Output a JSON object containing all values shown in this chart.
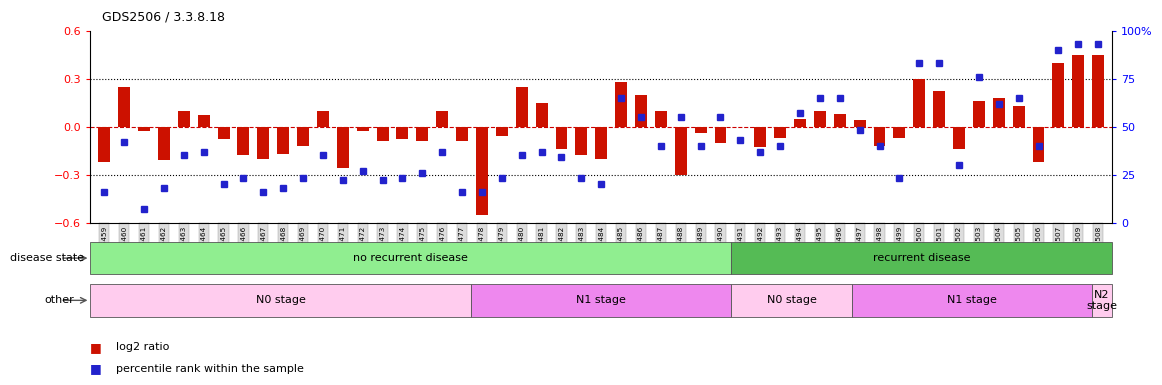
{
  "title": "GDS2506 / 3.3.8.18",
  "samples": [
    "GSM115459",
    "GSM115460",
    "GSM115461",
    "GSM115462",
    "GSM115463",
    "GSM115464",
    "GSM115465",
    "GSM115466",
    "GSM115467",
    "GSM115468",
    "GSM115469",
    "GSM115470",
    "GSM115471",
    "GSM115472",
    "GSM115473",
    "GSM115474",
    "GSM115475",
    "GSM115476",
    "GSM115477",
    "GSM115478",
    "GSM115479",
    "GSM115480",
    "GSM115481",
    "GSM115482",
    "GSM115483",
    "GSM115484",
    "GSM115485",
    "GSM115486",
    "GSM115487",
    "GSM115488",
    "GSM115489",
    "GSM115490",
    "GSM115491",
    "GSM115492",
    "GSM115493",
    "GSM115494",
    "GSM115495",
    "GSM115496",
    "GSM115497",
    "GSM115498",
    "GSM115499",
    "GSM115500",
    "GSM115501",
    "GSM115502",
    "GSM115503",
    "GSM115504",
    "GSM115505",
    "GSM115506",
    "GSM115507",
    "GSM115509",
    "GSM115508"
  ],
  "log2_ratio": [
    -0.22,
    0.25,
    -0.03,
    -0.21,
    0.1,
    0.07,
    -0.08,
    -0.18,
    -0.2,
    -0.17,
    -0.12,
    0.1,
    -0.26,
    -0.03,
    -0.09,
    -0.08,
    -0.09,
    0.1,
    -0.09,
    -0.55,
    -0.06,
    0.25,
    0.15,
    -0.14,
    -0.18,
    -0.2,
    0.28,
    0.2,
    0.1,
    -0.3,
    -0.04,
    -0.1,
    0.0,
    -0.13,
    -0.07,
    0.05,
    0.1,
    0.08,
    0.04,
    -0.12,
    -0.07,
    0.3,
    0.22,
    -0.14,
    0.16,
    0.18,
    0.13,
    -0.22,
    0.4,
    0.45,
    0.45
  ],
  "percentile": [
    16,
    42,
    7,
    18,
    35,
    37,
    20,
    23,
    16,
    18,
    23,
    35,
    22,
    27,
    22,
    23,
    26,
    37,
    16,
    16,
    23,
    35,
    37,
    34,
    23,
    20,
    65,
    55,
    40,
    55,
    40,
    55,
    43,
    37,
    40,
    57,
    65,
    65,
    48,
    40,
    23,
    83,
    83,
    30,
    76,
    62,
    65,
    40,
    90,
    93,
    93
  ],
  "disease_state_groups": [
    {
      "label": "no recurrent disease",
      "start": 0,
      "end": 32,
      "color": "#90EE90"
    },
    {
      "label": "recurrent disease",
      "start": 32,
      "end": 51,
      "color": "#55BB55"
    }
  ],
  "other_groups": [
    {
      "label": "N0 stage",
      "start": 0,
      "end": 19,
      "color": "#FFCCEE"
    },
    {
      "label": "N1 stage",
      "start": 19,
      "end": 32,
      "color": "#EE88EE"
    },
    {
      "label": "N0 stage",
      "start": 32,
      "end": 38,
      "color": "#FFCCEE"
    },
    {
      "label": "N1 stage",
      "start": 38,
      "end": 50,
      "color": "#EE88EE"
    },
    {
      "label": "N2\nstage",
      "start": 50,
      "end": 51,
      "color": "#FFCCEE"
    }
  ],
  "ylim_left": [
    -0.6,
    0.6
  ],
  "ylim_right": [
    0,
    100
  ],
  "bar_color": "#CC1100",
  "dot_color": "#2222CC",
  "zero_line_color": "#CC0000",
  "dotted_line_color": "#000000",
  "left_yticks": [
    -0.6,
    -0.3,
    0.0,
    0.3,
    0.6
  ],
  "right_yticks": [
    0,
    25,
    50,
    75,
    100
  ],
  "right_yticklabels": [
    "0",
    "25",
    "50",
    "75",
    "100%"
  ],
  "ds_label": "disease state",
  "other_label": "other",
  "legend_items": [
    {
      "color": "#CC1100",
      "label": "log2 ratio"
    },
    {
      "color": "#2222CC",
      "label": "percentile rank within the sample"
    }
  ]
}
